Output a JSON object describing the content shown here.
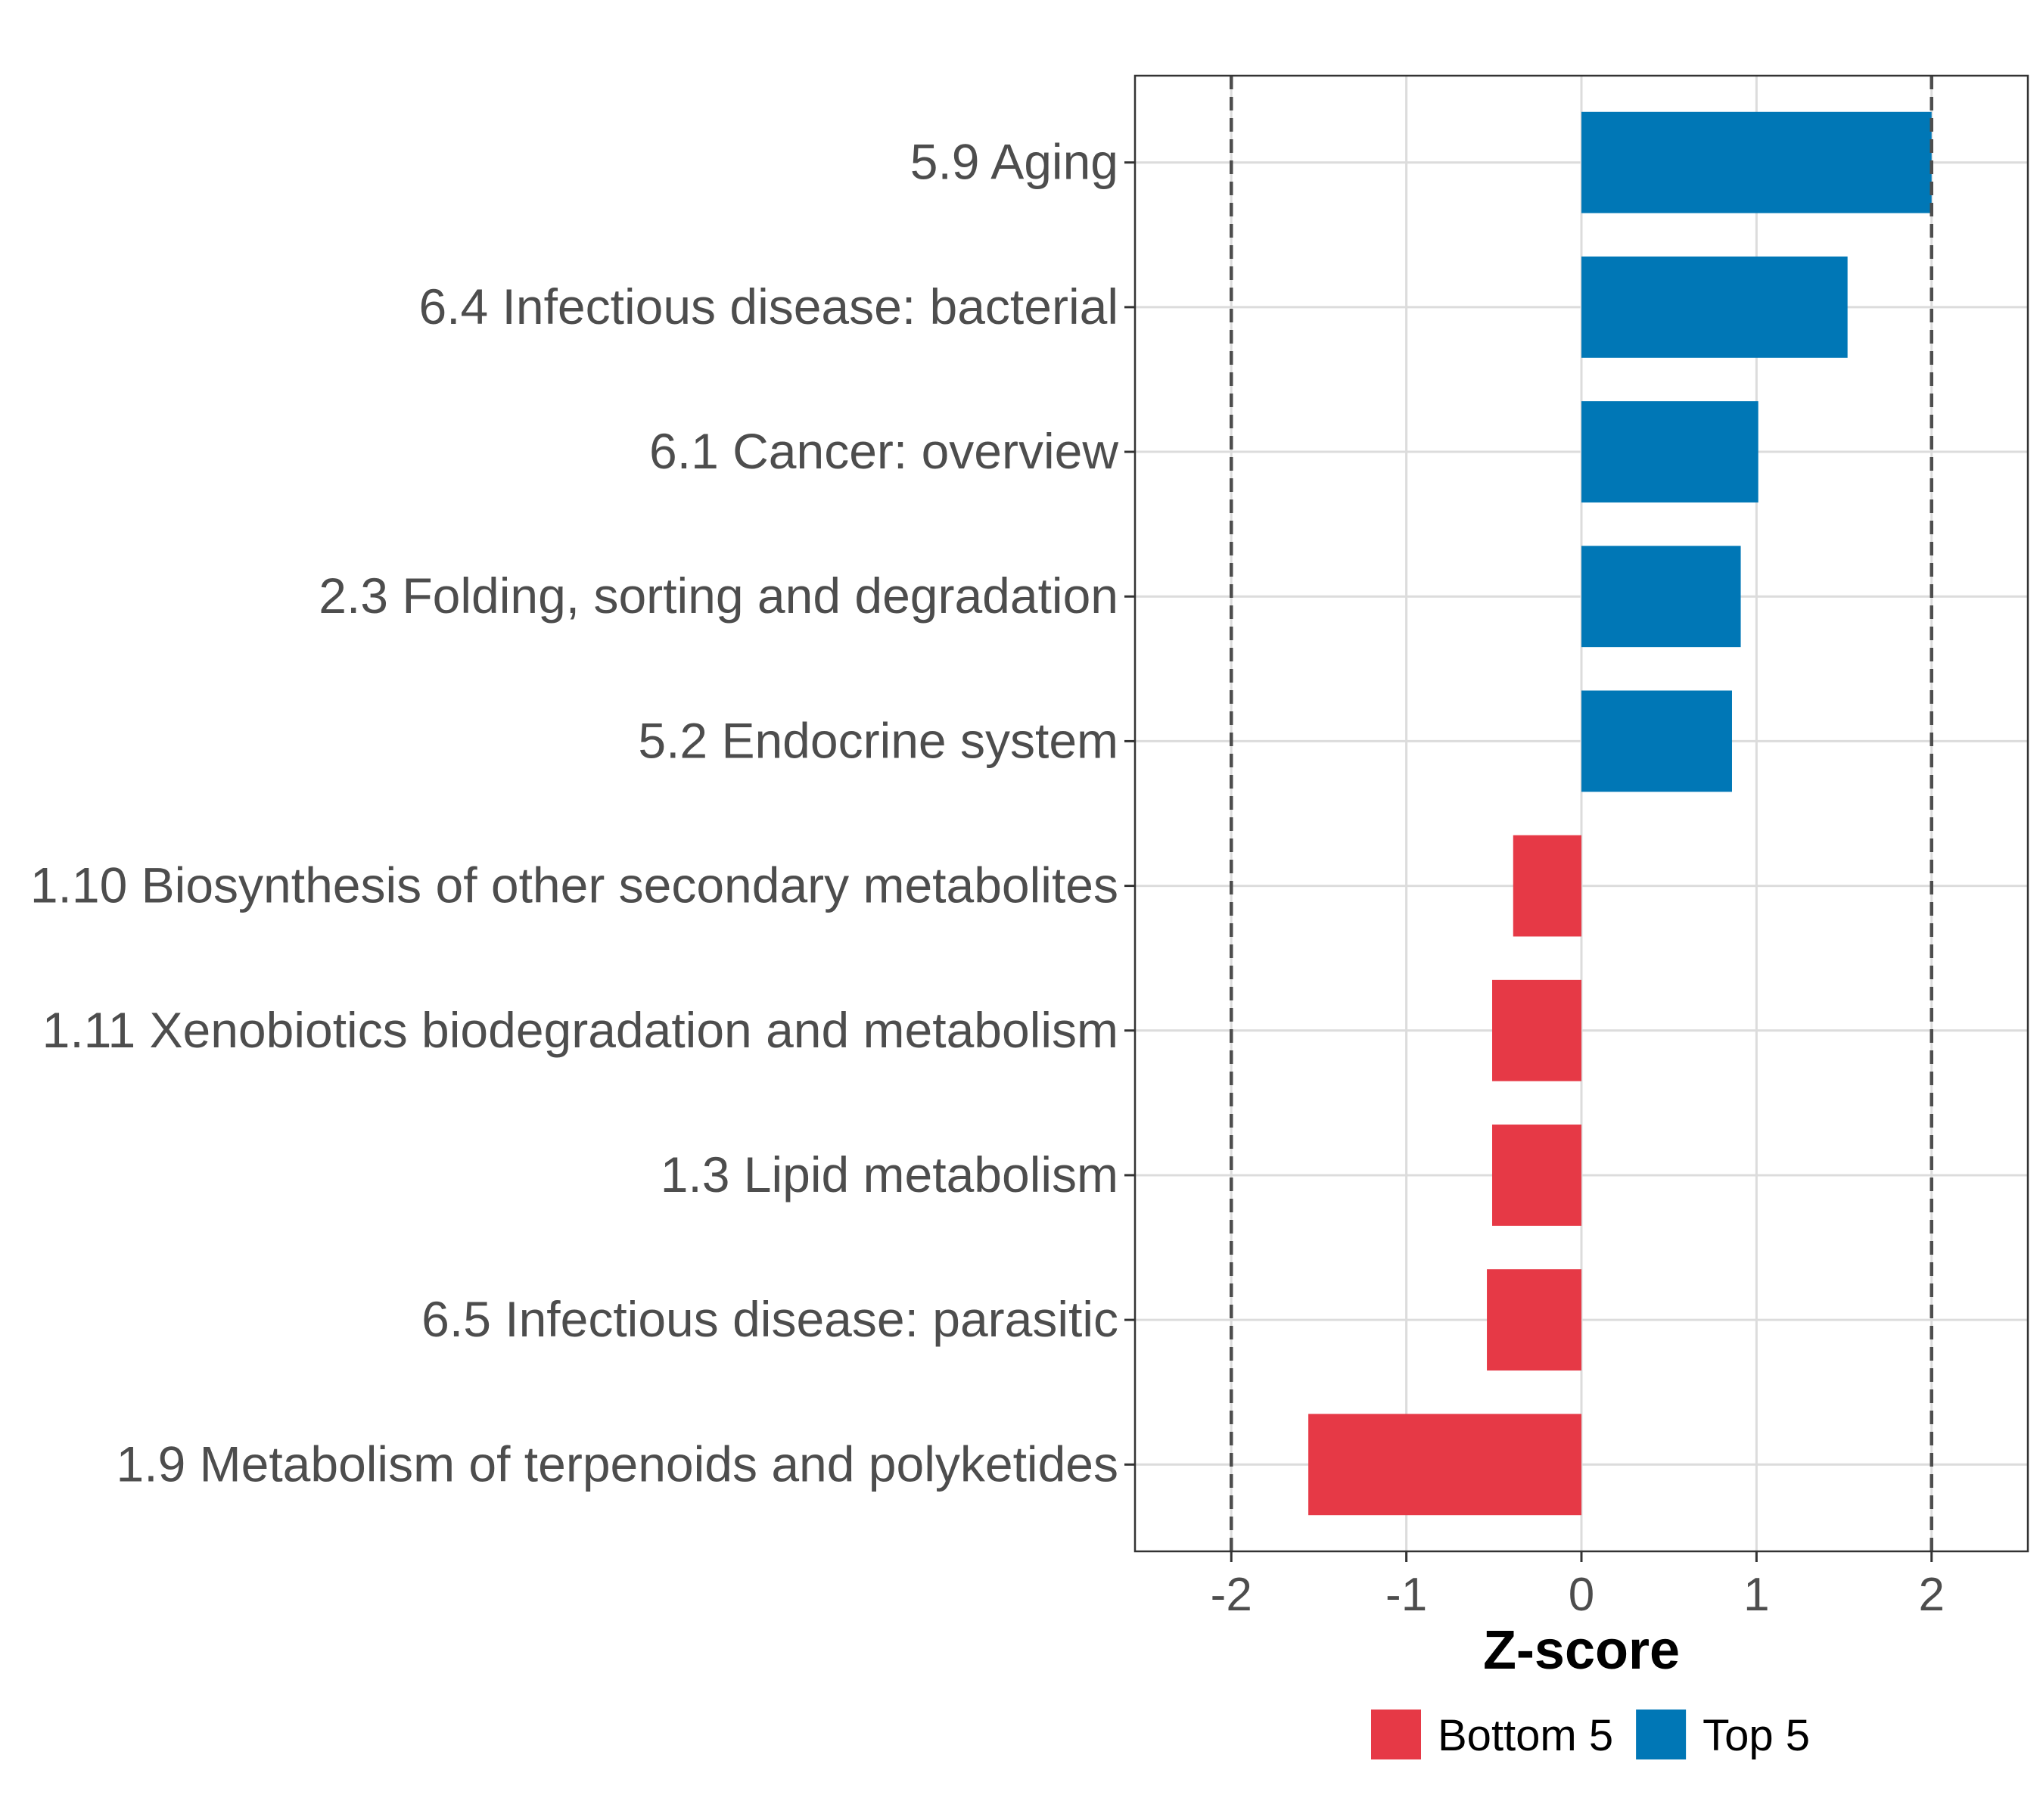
{
  "chart_data": {
    "type": "bar",
    "orientation": "horizontal",
    "title": "",
    "xlabel": "Z-score",
    "ylabel": "",
    "xlim": [
      -2.55,
      2.55
    ],
    "xticks": [
      -2,
      -1,
      0,
      1,
      2
    ],
    "xtick_labels": [
      "-2",
      "-1",
      "0",
      "1",
      "2"
    ],
    "reference_lines": [
      -2,
      2
    ],
    "grid": true,
    "legend_position": "bottom",
    "categories": [
      "5.9 Aging",
      "6.4 Infectious disease: bacterial",
      "6.1 Cancer: overview",
      "2.3 Folding, sorting and degradation",
      "5.2 Endocrine system",
      "1.10 Biosynthesis of other secondary metabolites",
      "1.11 Xenobiotics biodegradation and metabolism",
      "1.3 Lipid metabolism",
      "6.5 Infectious disease: parasitic",
      "1.9 Metabolism of terpenoids and polyketides"
    ],
    "values": [
      2.0,
      1.52,
      1.01,
      0.91,
      0.86,
      -0.39,
      -0.51,
      -0.51,
      -0.54,
      -1.56
    ],
    "groups": [
      "Top 5",
      "Top 5",
      "Top 5",
      "Top 5",
      "Top 5",
      "Bottom 5",
      "Bottom 5",
      "Bottom 5",
      "Bottom 5",
      "Bottom 5"
    ],
    "legend": [
      {
        "label": "Bottom 5",
        "color": "#E63946"
      },
      {
        "label": "Top 5",
        "color": "#0077B6"
      }
    ]
  },
  "colors": {
    "Top 5": "#0077B6",
    "Bottom 5": "#E63946",
    "grid": "#dcdcdc",
    "axis_text": "#4d4d4d",
    "reference_line": "#4d4d4d"
  }
}
